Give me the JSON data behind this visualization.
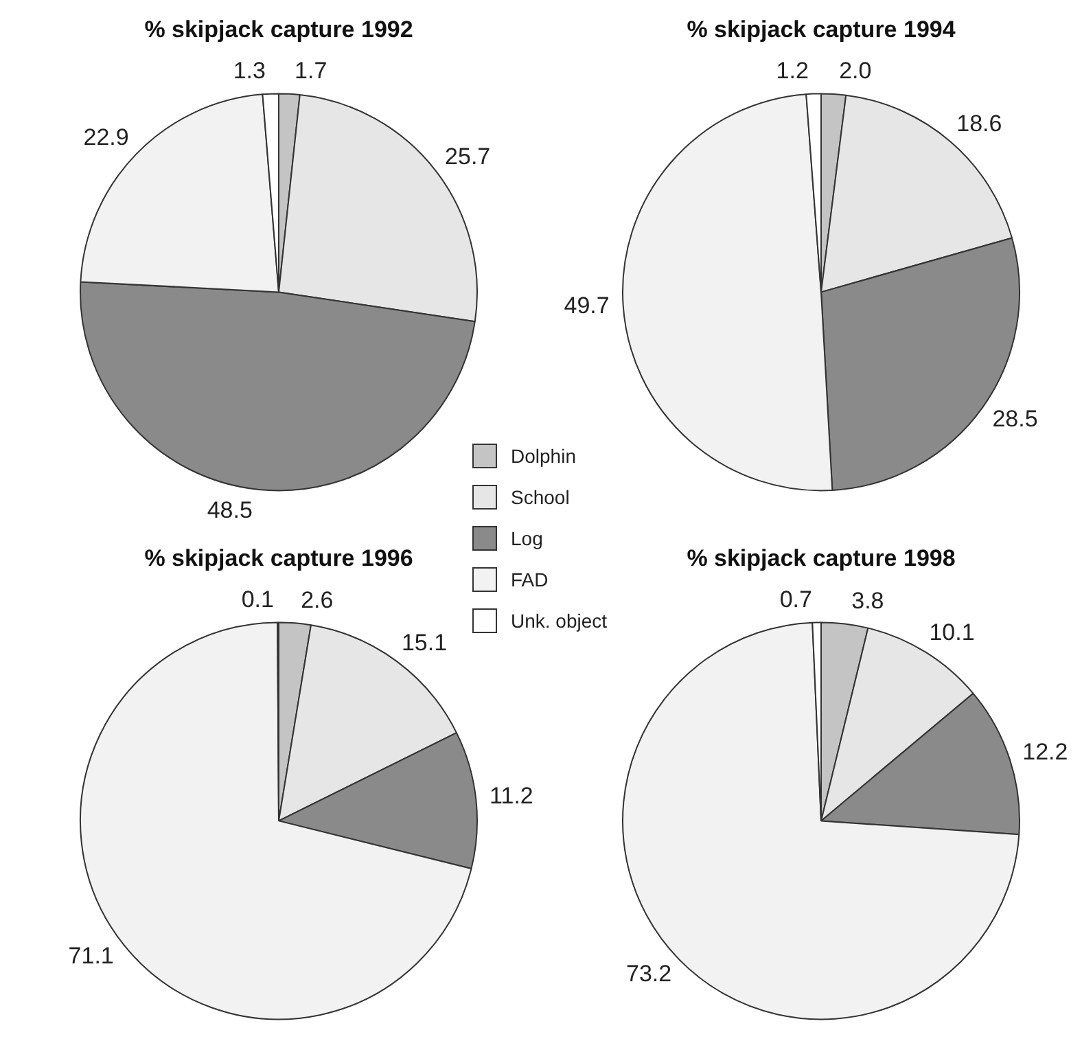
{
  "chart_data": [
    {
      "type": "pie",
      "title": "% skipjack capture 1992",
      "categories": [
        "Dolphin",
        "School",
        "Log",
        "FAD",
        "Unk. object"
      ],
      "values": [
        1.7,
        25.7,
        48.5,
        22.9,
        1.3
      ],
      "value_labels": [
        "1.7",
        "25.7",
        "48.5",
        "22.9",
        "1.3"
      ],
      "colors": [
        "#c4c4c4",
        "#e6e6e6",
        "#8a8a8a",
        "#f2f2f2",
        "#ffffff"
      ],
      "legend": "bottom right"
    },
    {
      "type": "pie",
      "title": "% skipjack capture 1994",
      "categories": [
        null,
        null,
        null,
        null,
        null
      ],
      "values": [
        2.0,
        18.6,
        28.5,
        49.7,
        1.2
      ],
      "value_labels": [
        "2.0",
        "18.6",
        "28.5",
        "49.7",
        "1.2"
      ],
      "colors": [
        "#c4c4c4",
        "#e6e6e6",
        "#8a8a8a",
        "#f2f2f2",
        "#ffffff"
      ]
    },
    {
      "type": "pie",
      "title": "% skipjack capture 1996",
      "categories": [
        null,
        null,
        null,
        null,
        null
      ],
      "values": [
        2.6,
        15.1,
        11.2,
        71.1,
        0.1
      ],
      "value_labels": [
        "2.6",
        "15.1",
        "11.2",
        "71.1",
        "0.1"
      ],
      "colors": [
        "#c4c4c4",
        "#e6e6e6",
        "#8a8a8a",
        "#f2f2f2",
        "#ffffff"
      ]
    },
    {
      "type": "pie",
      "title": "% skipjack capture 1998",
      "categories": [
        null,
        null,
        null,
        null,
        null
      ],
      "values": [
        3.8,
        10.1,
        12.2,
        73.2,
        0.7
      ],
      "value_labels": [
        "3.8",
        "10.1",
        "12.2",
        "73.2",
        "0.7"
      ],
      "colors": [
        "#c4c4c4",
        "#e6e6e6",
        "#8a8a8a",
        "#f2f2f2",
        "#ffffff"
      ]
    }
  ]
}
